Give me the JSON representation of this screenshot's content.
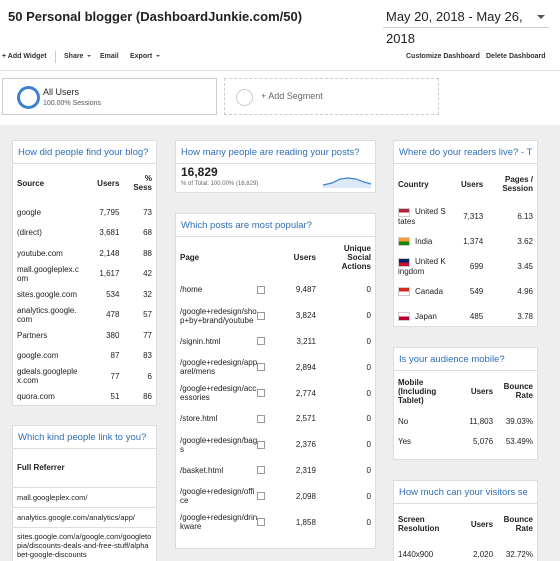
{
  "header": {
    "title": "50 Personal blogger (DashboardJunkie.com/50)",
    "date_range": "May 20, 2018 - May 26, 2018"
  },
  "toolbar": {
    "add_widget": "+ Add Widget",
    "share": "Share",
    "email": "Email",
    "export": "Export",
    "customize": "Customize Dashboard",
    "delete": "Delete Dashboard"
  },
  "segments": {
    "all_users": {
      "name": "All Users",
      "detail": "100.00% Sessions"
    },
    "add_segment": "+ Add Segment"
  },
  "widgets": [
    {
      "title": "How did people find your blog?",
      "columns": [
        "Source",
        "Users",
        "% Sess"
      ],
      "rows": [
        [
          "google",
          "7,795",
          "73"
        ],
        [
          "(direct)",
          "3,681",
          "68"
        ],
        [
          "youtube.com",
          "2,148",
          "88"
        ],
        [
          "mall.googleplex.com",
          "1,617",
          "42"
        ],
        [
          "sites.google.com",
          "534",
          "32"
        ],
        [
          "analytics.google.com",
          "478",
          "57"
        ],
        [
          "Partners",
          "380",
          "77"
        ],
        [
          "google.com",
          "87",
          "83"
        ],
        [
          "gdeals.googleplex.com",
          "77",
          "6"
        ],
        [
          "quora.com",
          "51",
          "86"
        ]
      ]
    },
    {
      "title": "Which kind people link to you?",
      "columns": [
        "Full Referrer"
      ],
      "rows": [
        [
          "mall.googleplex.com/"
        ],
        [
          "analytics.google.com/analytics/app/"
        ],
        [
          "sites.google.com/a/google.com/googletopia/discounts-deals-and-free-stuff/alphabet-google-discounts"
        ]
      ]
    },
    {
      "title": "How many people are reading your posts?",
      "value": "16,829",
      "detail": "% of Total: 100.00% (16,829)"
    },
    {
      "title": "Which posts are most popular?",
      "columns": [
        "Page",
        "Users",
        "Unique Social Actions"
      ],
      "rows": [
        [
          "/home",
          "9,487",
          "0"
        ],
        [
          "/google+redesign/shop+by+brand/youtube",
          "3,824",
          "0"
        ],
        [
          "/signin.html",
          "3,211",
          "0"
        ],
        [
          "/google+redesign/apparel/mens",
          "2,894",
          "0"
        ],
        [
          "/google+redesign/accessories",
          "2,774",
          "0"
        ],
        [
          "/store.html",
          "2,571",
          "0"
        ],
        [
          "/google+redesign/bags",
          "2,376",
          "0"
        ],
        [
          "/basket.html",
          "2,319",
          "0"
        ],
        [
          "/google+redesign/office",
          "2,098",
          "0"
        ],
        [
          "/google+redesign/drinkware",
          "1,858",
          "0"
        ]
      ]
    },
    {
      "title": "Where do your readers live? - T",
      "columns": [
        "Country",
        "Users",
        "Pages / Session"
      ],
      "rows": [
        [
          "United States",
          "7,313",
          "6.13"
        ],
        [
          "India",
          "1,374",
          "3.62"
        ],
        [
          "United Kingdom",
          "699",
          "3.45"
        ],
        [
          "Canada",
          "549",
          "4.96"
        ],
        [
          "Japan",
          "485",
          "3.78"
        ]
      ]
    },
    {
      "title": "Is your audience mobile?",
      "columns": [
        "Mobile (Including Tablet)",
        "Users",
        "Bounce Rate"
      ],
      "rows": [
        [
          "No",
          "11,803",
          "39.03%"
        ],
        [
          "Yes",
          "5,076",
          "53.49%"
        ]
      ]
    },
    {
      "title": "How much can your visitors se",
      "columns": [
        "Screen Resolution",
        "Users",
        "Bounce Rate"
      ],
      "rows": [
        [
          "1440x900",
          "2,020",
          "32.72%"
        ]
      ]
    }
  ]
}
